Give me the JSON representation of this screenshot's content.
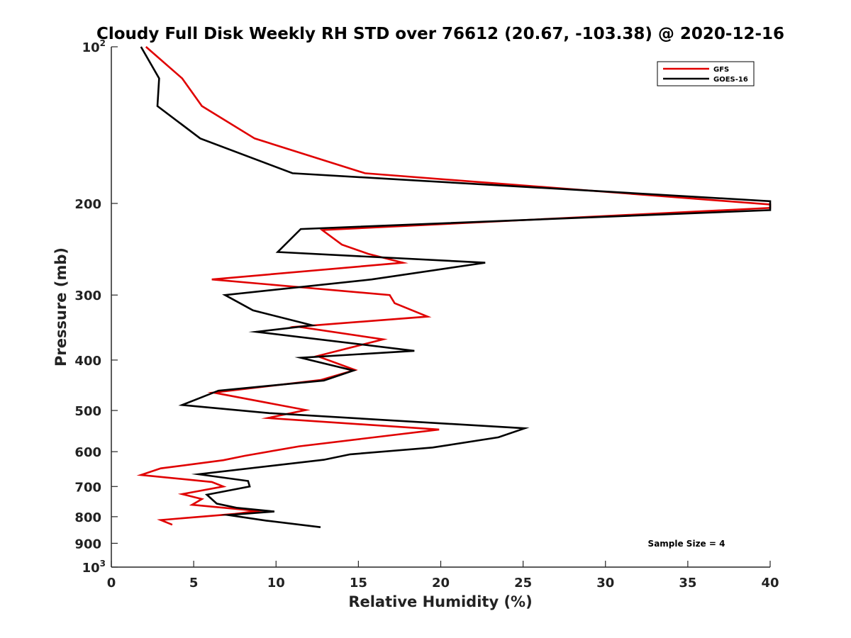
{
  "chart_data": {
    "type": "line",
    "title": "Cloudy Full Disk Weekly RH STD over 76612 (20.67, -103.38) @ 2020-12-16",
    "xlabel": "Relative Humidity (%)",
    "ylabel": "Pressure (mb)",
    "xlim": [
      0,
      40
    ],
    "ylim": [
      100,
      1000
    ],
    "yscale": "log",
    "ydirection": "reverse",
    "xticks": [
      0,
      5,
      10,
      15,
      20,
      25,
      30,
      35,
      40
    ],
    "xtick_labels": [
      "0",
      "5",
      "10",
      "15",
      "20",
      "25",
      "30",
      "35",
      "40"
    ],
    "yticks": [
      {
        "value": 100,
        "base": "10",
        "exp": "2"
      },
      {
        "value": 200,
        "label": "200"
      },
      {
        "value": 300,
        "label": "300"
      },
      {
        "value": 400,
        "label": "400"
      },
      {
        "value": 500,
        "label": "500"
      },
      {
        "value": 600,
        "label": "600"
      },
      {
        "value": 700,
        "label": "700"
      },
      {
        "value": 800,
        "label": "800"
      },
      {
        "value": 900,
        "label": "900"
      },
      {
        "value": 1000,
        "base": "10",
        "exp": "3"
      }
    ],
    "legend": {
      "position": "top-right",
      "entries": [
        "GFS",
        "GOES-16"
      ]
    },
    "annotation": "Sample Size = 4",
    "series": [
      {
        "name": "GFS",
        "color": "#e00000",
        "points": [
          [
            2.1,
            100
          ],
          [
            4.3,
            115
          ],
          [
            5.5,
            130
          ],
          [
            8.7,
            150
          ],
          [
            15.4,
            175
          ],
          [
            40,
            201
          ],
          [
            40,
            204
          ],
          [
            12.8,
            225
          ],
          [
            14.0,
            240
          ],
          [
            15.6,
            250
          ],
          [
            17.7,
            260
          ],
          [
            6.1,
            280
          ],
          [
            16.9,
            300
          ],
          [
            17.2,
            311
          ],
          [
            19.2,
            330
          ],
          [
            11.3,
            345
          ],
          [
            16.5,
            365
          ],
          [
            12.5,
            393
          ],
          [
            14.8,
            418
          ],
          [
            12.7,
            437
          ],
          [
            6.2,
            462
          ],
          [
            11.8,
            499
          ],
          [
            9.5,
            517
          ],
          [
            19.9,
            544
          ],
          [
            11.4,
            586
          ],
          [
            8.1,
            611
          ],
          [
            6.8,
            623
          ],
          [
            3.0,
            646
          ],
          [
            1.8,
            665
          ],
          [
            6.1,
            686
          ],
          [
            6.8,
            700
          ],
          [
            4.3,
            724
          ],
          [
            5.5,
            740
          ],
          [
            4.9,
            759
          ],
          [
            8.9,
            780
          ],
          [
            7.5,
            790
          ],
          [
            3.0,
            812
          ],
          [
            3.7,
            829
          ]
        ]
      },
      {
        "name": "GOES-16",
        "color": "#000000",
        "points": [
          [
            1.8,
            100
          ],
          [
            2.9,
            115
          ],
          [
            2.8,
            130
          ],
          [
            5.4,
            150
          ],
          [
            11.0,
            175
          ],
          [
            40,
            198
          ],
          [
            40,
            206
          ],
          [
            11.5,
            224
          ],
          [
            10.1,
            248
          ],
          [
            22.7,
            260
          ],
          [
            15.8,
            280
          ],
          [
            6.9,
            300
          ],
          [
            8.6,
            321
          ],
          [
            12.2,
            343
          ],
          [
            8.8,
            353
          ],
          [
            18.4,
            384
          ],
          [
            11.5,
            396
          ],
          [
            14.7,
            419
          ],
          [
            12.9,
            438
          ],
          [
            6.5,
            458
          ],
          [
            4.3,
            488
          ],
          [
            9.6,
            506
          ],
          [
            25.1,
            541
          ],
          [
            23.5,
            563
          ],
          [
            19.5,
            589
          ],
          [
            14.5,
            607
          ],
          [
            12.9,
            622
          ],
          [
            5.3,
            663
          ],
          [
            8.3,
            683
          ],
          [
            8.4,
            700
          ],
          [
            5.8,
            726
          ],
          [
            6.4,
            755
          ],
          [
            7.6,
            769
          ],
          [
            9.9,
            782
          ],
          [
            7.1,
            794
          ],
          [
            9.4,
            814
          ],
          [
            12.7,
            838
          ]
        ]
      }
    ]
  }
}
